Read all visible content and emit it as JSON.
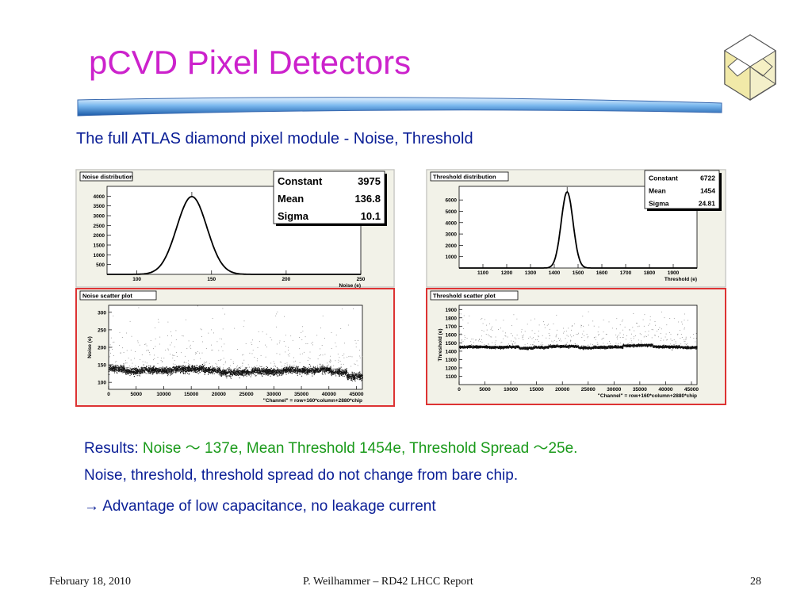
{
  "slide": {
    "title": "pCVD Pixel Detectors",
    "subtitle": "The full ATLAS diamond pixel module - Noise, Threshold",
    "results_label": "Results:",
    "results_text": "Noise  ～ 137e, Mean Threshold 1454e, Threshold Spread  ～25e.",
    "line2": "Noise, threshold, threshold spread do not change from bare chip.",
    "line3": "→ Advantage of low capacitance, no leakage current",
    "footer_date": "February 18, 2010",
    "footer_center": "P. Weilhammer – RD42 LHCC Report",
    "footer_page": "28",
    "colors": {
      "title": "#cc22cc",
      "text": "#0a1e96",
      "highlight": "#1a9a1a"
    },
    "logo_icon": "diamond-logo-icon"
  },
  "chart_data": [
    {
      "type": "histogram",
      "title": "Noise distribution",
      "xlabel": "Noise (e)",
      "xlim": [
        80,
        250
      ],
      "xticks": [
        100,
        150,
        200,
        250
      ],
      "yticks": [
        500,
        1000,
        1500,
        2000,
        2500,
        3000,
        3500,
        4000
      ],
      "ylim": [
        0,
        4500
      ],
      "stats": [
        [
          "Constant",
          "3975"
        ],
        [
          "Mean",
          "136.8"
        ],
        [
          "Sigma",
          "10.1"
        ]
      ],
      "gaussian": {
        "constant": 3975,
        "mean": 136.8,
        "sigma": 10.1
      }
    },
    {
      "type": "histogram",
      "title": "Threshold distribution",
      "xlabel": "Threshold (e)",
      "xlim": [
        1000,
        2000
      ],
      "xticks": [
        1100,
        1200,
        1300,
        1400,
        1500,
        1600,
        1700,
        1800,
        1900
      ],
      "yticks": [
        1000,
        2000,
        3000,
        4000,
        5000,
        6000
      ],
      "ylim": [
        0,
        7200
      ],
      "stats": [
        [
          "Constant",
          "6722"
        ],
        [
          "Mean",
          "1454"
        ],
        [
          "Sigma",
          "24.81"
        ]
      ],
      "gaussian": {
        "constant": 6722,
        "mean": 1454,
        "sigma": 24.81
      }
    },
    {
      "type": "scatter",
      "title": "Noise scatter plot",
      "xlabel": "\"Channel\" = row+160*column+2880*chip",
      "ylabel": "Noise (e)",
      "xlim": [
        0,
        46080
      ],
      "ylim": [
        80,
        320
      ],
      "xticks": [
        0,
        5000,
        10000,
        15000,
        20000,
        25000,
        30000,
        35000,
        40000,
        45000
      ],
      "yticks": [
        100,
        150,
        200,
        250,
        300
      ],
      "chip_levels": [
        140,
        132,
        136,
        134,
        138,
        140,
        135,
        128,
        130,
        133,
        131,
        136,
        134,
        137,
        130,
        118
      ],
      "band_spread": 8
    },
    {
      "type": "scatter",
      "title": "Threshold scatter plot",
      "xlabel": "\"Channel\" = row+160*column+2880*chip",
      "ylabel": "Threshold (e)",
      "xlim": [
        0,
        46080
      ],
      "ylim": [
        1000,
        1950
      ],
      "xticks": [
        0,
        5000,
        10000,
        15000,
        20000,
        25000,
        30000,
        35000,
        40000,
        45000
      ],
      "yticks": [
        1100,
        1200,
        1300,
        1400,
        1500,
        1600,
        1700,
        1800,
        1900
      ],
      "chip_levels": [
        1455,
        1455,
        1450,
        1455,
        1440,
        1450,
        1462,
        1462,
        1445,
        1450,
        1455,
        1470,
        1475,
        1458,
        1455,
        1448
      ],
      "band_spread": 12
    }
  ]
}
